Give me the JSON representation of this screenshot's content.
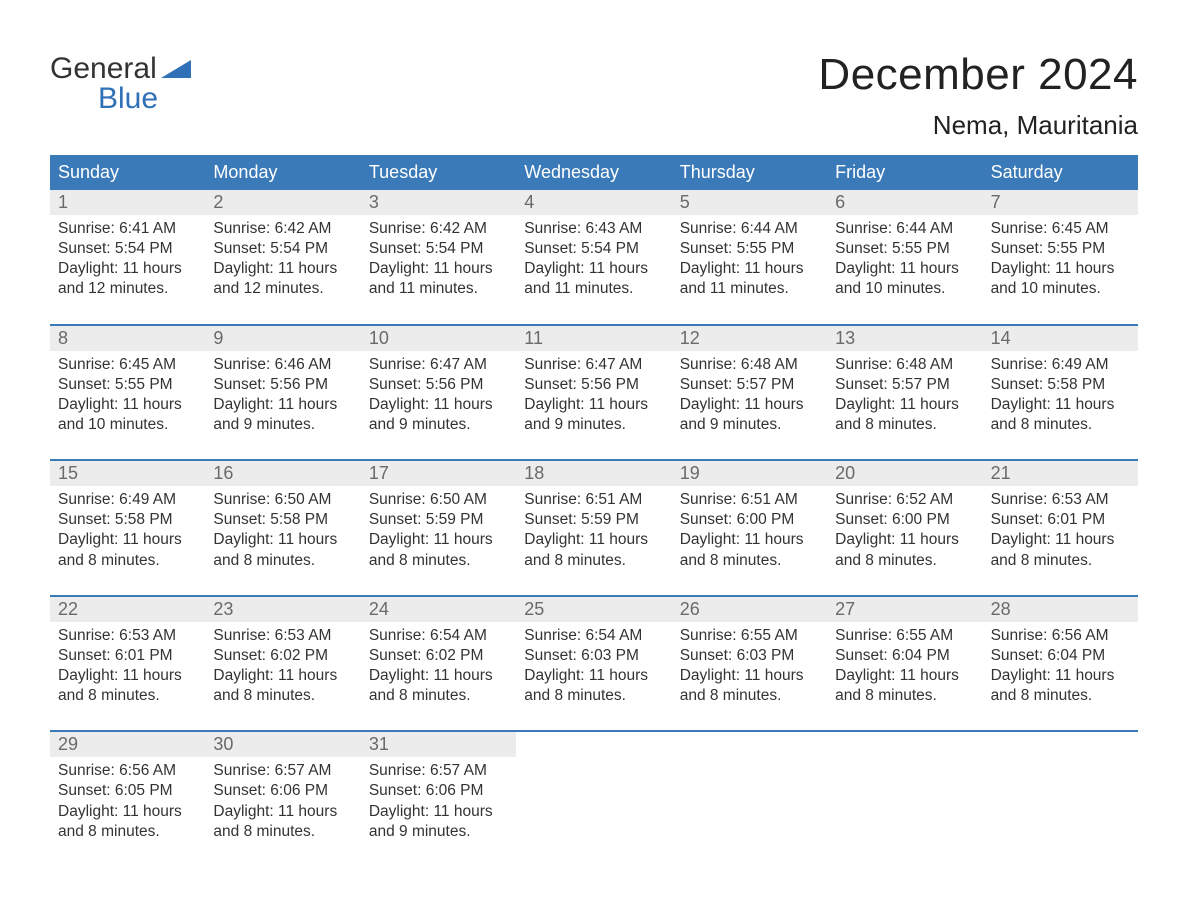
{
  "brand": {
    "word1": "General",
    "word2": "Blue",
    "accent_color": "#2f70b7"
  },
  "title": "December 2024",
  "location": "Nema, Mauritania",
  "colors": {
    "header_bg": "#3a7ab8",
    "header_text": "#ffffff",
    "daynum_bg": "#ececec",
    "daynum_text": "#6a6a6a",
    "week_border": "#3a7ab8",
    "body_text": "#333333",
    "page_bg": "#ffffff"
  },
  "fonts": {
    "title_size_pt": 33,
    "location_size_pt": 20,
    "dow_size_pt": 14,
    "body_size_pt": 12
  },
  "days_of_week": [
    "Sunday",
    "Monday",
    "Tuesday",
    "Wednesday",
    "Thursday",
    "Friday",
    "Saturday"
  ],
  "weeks": [
    [
      {
        "n": "1",
        "sunrise": "Sunrise: 6:41 AM",
        "sunset": "Sunset: 5:54 PM",
        "daylight": "Daylight: 11 hours and 12 minutes."
      },
      {
        "n": "2",
        "sunrise": "Sunrise: 6:42 AM",
        "sunset": "Sunset: 5:54 PM",
        "daylight": "Daylight: 11 hours and 12 minutes."
      },
      {
        "n": "3",
        "sunrise": "Sunrise: 6:42 AM",
        "sunset": "Sunset: 5:54 PM",
        "daylight": "Daylight: 11 hours and 11 minutes."
      },
      {
        "n": "4",
        "sunrise": "Sunrise: 6:43 AM",
        "sunset": "Sunset: 5:54 PM",
        "daylight": "Daylight: 11 hours and 11 minutes."
      },
      {
        "n": "5",
        "sunrise": "Sunrise: 6:44 AM",
        "sunset": "Sunset: 5:55 PM",
        "daylight": "Daylight: 11 hours and 11 minutes."
      },
      {
        "n": "6",
        "sunrise": "Sunrise: 6:44 AM",
        "sunset": "Sunset: 5:55 PM",
        "daylight": "Daylight: 11 hours and 10 minutes."
      },
      {
        "n": "7",
        "sunrise": "Sunrise: 6:45 AM",
        "sunset": "Sunset: 5:55 PM",
        "daylight": "Daylight: 11 hours and 10 minutes."
      }
    ],
    [
      {
        "n": "8",
        "sunrise": "Sunrise: 6:45 AM",
        "sunset": "Sunset: 5:55 PM",
        "daylight": "Daylight: 11 hours and 10 minutes."
      },
      {
        "n": "9",
        "sunrise": "Sunrise: 6:46 AM",
        "sunset": "Sunset: 5:56 PM",
        "daylight": "Daylight: 11 hours and 9 minutes."
      },
      {
        "n": "10",
        "sunrise": "Sunrise: 6:47 AM",
        "sunset": "Sunset: 5:56 PM",
        "daylight": "Daylight: 11 hours and 9 minutes."
      },
      {
        "n": "11",
        "sunrise": "Sunrise: 6:47 AM",
        "sunset": "Sunset: 5:56 PM",
        "daylight": "Daylight: 11 hours and 9 minutes."
      },
      {
        "n": "12",
        "sunrise": "Sunrise: 6:48 AM",
        "sunset": "Sunset: 5:57 PM",
        "daylight": "Daylight: 11 hours and 9 minutes."
      },
      {
        "n": "13",
        "sunrise": "Sunrise: 6:48 AM",
        "sunset": "Sunset: 5:57 PM",
        "daylight": "Daylight: 11 hours and 8 minutes."
      },
      {
        "n": "14",
        "sunrise": "Sunrise: 6:49 AM",
        "sunset": "Sunset: 5:58 PM",
        "daylight": "Daylight: 11 hours and 8 minutes."
      }
    ],
    [
      {
        "n": "15",
        "sunrise": "Sunrise: 6:49 AM",
        "sunset": "Sunset: 5:58 PM",
        "daylight": "Daylight: 11 hours and 8 minutes."
      },
      {
        "n": "16",
        "sunrise": "Sunrise: 6:50 AM",
        "sunset": "Sunset: 5:58 PM",
        "daylight": "Daylight: 11 hours and 8 minutes."
      },
      {
        "n": "17",
        "sunrise": "Sunrise: 6:50 AM",
        "sunset": "Sunset: 5:59 PM",
        "daylight": "Daylight: 11 hours and 8 minutes."
      },
      {
        "n": "18",
        "sunrise": "Sunrise: 6:51 AM",
        "sunset": "Sunset: 5:59 PM",
        "daylight": "Daylight: 11 hours and 8 minutes."
      },
      {
        "n": "19",
        "sunrise": "Sunrise: 6:51 AM",
        "sunset": "Sunset: 6:00 PM",
        "daylight": "Daylight: 11 hours and 8 minutes."
      },
      {
        "n": "20",
        "sunrise": "Sunrise: 6:52 AM",
        "sunset": "Sunset: 6:00 PM",
        "daylight": "Daylight: 11 hours and 8 minutes."
      },
      {
        "n": "21",
        "sunrise": "Sunrise: 6:53 AM",
        "sunset": "Sunset: 6:01 PM",
        "daylight": "Daylight: 11 hours and 8 minutes."
      }
    ],
    [
      {
        "n": "22",
        "sunrise": "Sunrise: 6:53 AM",
        "sunset": "Sunset: 6:01 PM",
        "daylight": "Daylight: 11 hours and 8 minutes."
      },
      {
        "n": "23",
        "sunrise": "Sunrise: 6:53 AM",
        "sunset": "Sunset: 6:02 PM",
        "daylight": "Daylight: 11 hours and 8 minutes."
      },
      {
        "n": "24",
        "sunrise": "Sunrise: 6:54 AM",
        "sunset": "Sunset: 6:02 PM",
        "daylight": "Daylight: 11 hours and 8 minutes."
      },
      {
        "n": "25",
        "sunrise": "Sunrise: 6:54 AM",
        "sunset": "Sunset: 6:03 PM",
        "daylight": "Daylight: 11 hours and 8 minutes."
      },
      {
        "n": "26",
        "sunrise": "Sunrise: 6:55 AM",
        "sunset": "Sunset: 6:03 PM",
        "daylight": "Daylight: 11 hours and 8 minutes."
      },
      {
        "n": "27",
        "sunrise": "Sunrise: 6:55 AM",
        "sunset": "Sunset: 6:04 PM",
        "daylight": "Daylight: 11 hours and 8 minutes."
      },
      {
        "n": "28",
        "sunrise": "Sunrise: 6:56 AM",
        "sunset": "Sunset: 6:04 PM",
        "daylight": "Daylight: 11 hours and 8 minutes."
      }
    ],
    [
      {
        "n": "29",
        "sunrise": "Sunrise: 6:56 AM",
        "sunset": "Sunset: 6:05 PM",
        "daylight": "Daylight: 11 hours and 8 minutes."
      },
      {
        "n": "30",
        "sunrise": "Sunrise: 6:57 AM",
        "sunset": "Sunset: 6:06 PM",
        "daylight": "Daylight: 11 hours and 8 minutes."
      },
      {
        "n": "31",
        "sunrise": "Sunrise: 6:57 AM",
        "sunset": "Sunset: 6:06 PM",
        "daylight": "Daylight: 11 hours and 9 minutes."
      },
      null,
      null,
      null,
      null
    ]
  ]
}
